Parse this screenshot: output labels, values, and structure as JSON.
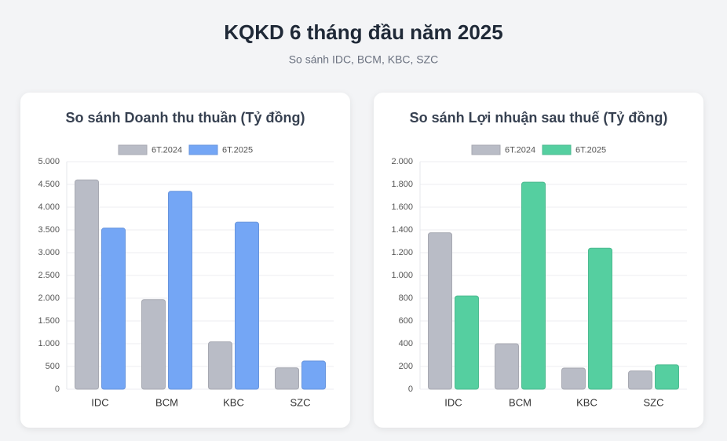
{
  "header": {
    "title": "KQKD 6 tháng đầu năm 2025",
    "subtitle": "So sánh IDC, BCM, KBC, SZC"
  },
  "chart_data": [
    {
      "type": "bar",
      "title": "So sánh Doanh thu thuần (Tỷ đồng)",
      "categories": [
        "IDC",
        "BCM",
        "KBC",
        "SZC"
      ],
      "series": [
        {
          "name": "6T.2024",
          "color": "#b9bcc6",
          "values": [
            4600,
            1970,
            1040,
            470
          ]
        },
        {
          "name": "6T.2025",
          "color": "#74a6f5",
          "values": [
            3540,
            4350,
            3670,
            620
          ]
        }
      ],
      "ylim": [
        0,
        5000
      ],
      "yticks": [
        0,
        500,
        {
          "value": 1000,
          "label": "1.000"
        },
        {
          "value": 1500,
          "label": "1.500"
        },
        {
          "value": 2000,
          "label": "2.000"
        },
        {
          "value": 2500,
          "label": "2.500"
        },
        {
          "value": 3000,
          "label": "3.000"
        },
        {
          "value": 3500,
          "label": "3.500"
        },
        {
          "value": 4000,
          "label": "4.000"
        },
        {
          "value": 4500,
          "label": "4.500"
        },
        {
          "value": 5000,
          "label": "5.000"
        }
      ],
      "grid": true,
      "legend": "top"
    },
    {
      "type": "bar",
      "title": "So sánh Lợi nhuận sau thuế (Tỷ đồng)",
      "categories": [
        "IDC",
        "BCM",
        "KBC",
        "SZC"
      ],
      "series": [
        {
          "name": "6T.2024",
          "color": "#b9bcc6",
          "values": [
            1375,
            400,
            186,
            160
          ]
        },
        {
          "name": "6T.2025",
          "color": "#55cfa0",
          "values": [
            820,
            1820,
            1240,
            215
          ]
        }
      ],
      "ylim": [
        0,
        2000
      ],
      "yticks": [
        0,
        200,
        400,
        600,
        800,
        {
          "value": 1000,
          "label": "1.000"
        },
        {
          "value": 1200,
          "label": "1.200"
        },
        {
          "value": 1400,
          "label": "1.400"
        },
        {
          "value": 1600,
          "label": "1.600"
        },
        {
          "value": 1800,
          "label": "1.800"
        },
        {
          "value": 2000,
          "label": "2.000"
        }
      ],
      "grid": true,
      "legend": "top"
    }
  ]
}
